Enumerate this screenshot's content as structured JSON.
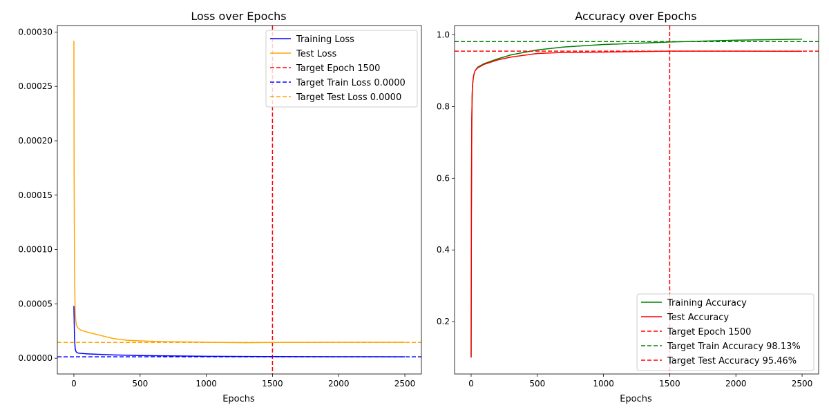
{
  "chart_data": [
    {
      "type": "line",
      "title": "Loss over Epochs",
      "xlabel": "Epochs",
      "ylabel": "",
      "xlim": [
        -125,
        2625
      ],
      "ylim": [
        -1.45e-05,
        0.000306
      ],
      "xticks": [
        {
          "v": 0,
          "label": "0"
        },
        {
          "v": 500,
          "label": "500"
        },
        {
          "v": 1000,
          "label": "1000"
        },
        {
          "v": 1500,
          "label": "1500"
        },
        {
          "v": 2000,
          "label": "2000"
        },
        {
          "v": 2500,
          "label": "2500"
        }
      ],
      "yticks": [
        {
          "v": 0,
          "label": "0.00000"
        },
        {
          "v": 5e-05,
          "label": "0.00005"
        },
        {
          "v": 0.0001,
          "label": "0.00010"
        },
        {
          "v": 0.00015,
          "label": "0.00015"
        },
        {
          "v": 0.0002,
          "label": "0.00020"
        },
        {
          "v": 0.00025,
          "label": "0.00025"
        },
        {
          "v": 0.0003,
          "label": "0.00030"
        }
      ],
      "grid": false,
      "legend_position": "top-right",
      "series": [
        {
          "name": "Training Loss",
          "color": "#0000ff",
          "x": [
            0,
            5,
            10,
            15,
            20,
            30,
            50,
            100,
            200,
            300,
            500,
            700,
            1000,
            1500,
            2000,
            2500
          ],
          "y": [
            4.8e-05,
            1.8e-05,
            8.5e-06,
            6.5e-06,
            5.5e-06,
            4.8e-06,
            4.5e-06,
            4e-06,
            3.5e-06,
            3e-06,
            2.5e-06,
            2.2e-06,
            1.8e-06,
            1.5e-06,
            1.4e-06,
            1.3e-06
          ]
        },
        {
          "name": "Test Loss",
          "color": "#ffa500",
          "x": [
            0,
            2,
            5,
            8,
            10,
            15,
            20,
            30,
            50,
            100,
            200,
            300,
            400,
            500,
            700,
            1000,
            1300,
            1500,
            2000,
            2500
          ],
          "y": [
            0.000292,
            0.00016,
            8e-05,
            5.2e-05,
            4.2e-05,
            3.4e-05,
            3e-05,
            2.8e-05,
            2.6e-05,
            2.4e-05,
            2.1e-05,
            1.8e-05,
            1.65e-05,
            1.6e-05,
            1.52e-05,
            1.47e-05,
            1.43e-05,
            1.45e-05,
            1.47e-05,
            1.47e-05
          ]
        }
      ],
      "reference_lines": [
        {
          "orientation": "vertical",
          "value": 1500,
          "name": "Target Epoch 1500",
          "color": "#ff0000"
        },
        {
          "orientation": "horizontal",
          "value": 1.3e-06,
          "name": "Target Train Loss 0.0000",
          "color": "#0000ff"
        },
        {
          "orientation": "horizontal",
          "value": 1.45e-05,
          "name": "Target Test Loss 0.0000",
          "color": "#ffa500"
        }
      ]
    },
    {
      "type": "line",
      "title": "Accuracy over Epochs",
      "xlabel": "Epochs",
      "ylabel": "",
      "xlim": [
        -125,
        2625
      ],
      "ylim": [
        0.054,
        1.026
      ],
      "xticks": [
        {
          "v": 0,
          "label": "0"
        },
        {
          "v": 500,
          "label": "500"
        },
        {
          "v": 1000,
          "label": "1000"
        },
        {
          "v": 1500,
          "label": "1500"
        },
        {
          "v": 2000,
          "label": "2000"
        },
        {
          "v": 2500,
          "label": "2500"
        }
      ],
      "yticks": [
        {
          "v": 0.2,
          "label": "0.2"
        },
        {
          "v": 0.4,
          "label": "0.4"
        },
        {
          "v": 0.6,
          "label": "0.6"
        },
        {
          "v": 0.8,
          "label": "0.8"
        },
        {
          "v": 1.0,
          "label": "1.0"
        }
      ],
      "grid": false,
      "legend_position": "bottom-right",
      "series": [
        {
          "name": "Training Accuracy",
          "color": "#008000",
          "x": [
            0,
            2,
            5,
            8,
            10,
            15,
            20,
            30,
            50,
            100,
            200,
            300,
            500,
            700,
            1000,
            1500,
            2000,
            2500
          ],
          "y": [
            0.1,
            0.5,
            0.76,
            0.83,
            0.855,
            0.875,
            0.888,
            0.9,
            0.91,
            0.92,
            0.933,
            0.944,
            0.958,
            0.966,
            0.973,
            0.98,
            0.985,
            0.988
          ]
        },
        {
          "name": "Test Accuracy",
          "color": "#ff0000",
          "x": [
            0,
            2,
            5,
            8,
            10,
            15,
            20,
            30,
            50,
            100,
            200,
            300,
            500,
            700,
            1000,
            1500,
            2000,
            2500
          ],
          "y": [
            0.1,
            0.5,
            0.76,
            0.83,
            0.855,
            0.875,
            0.888,
            0.9,
            0.908,
            0.918,
            0.93,
            0.938,
            0.948,
            0.951,
            0.952,
            0.9546,
            0.9545,
            0.954
          ]
        }
      ],
      "reference_lines": [
        {
          "orientation": "vertical",
          "value": 1500,
          "name": "Target Epoch 1500",
          "color": "#ff0000"
        },
        {
          "orientation": "horizontal",
          "value": 0.9813,
          "name": "Target Train Accuracy 98.13%",
          "color": "#008000"
        },
        {
          "orientation": "horizontal",
          "value": 0.9546,
          "name": "Target Test Accuracy 95.46%",
          "color": "#ff0000"
        }
      ]
    }
  ]
}
